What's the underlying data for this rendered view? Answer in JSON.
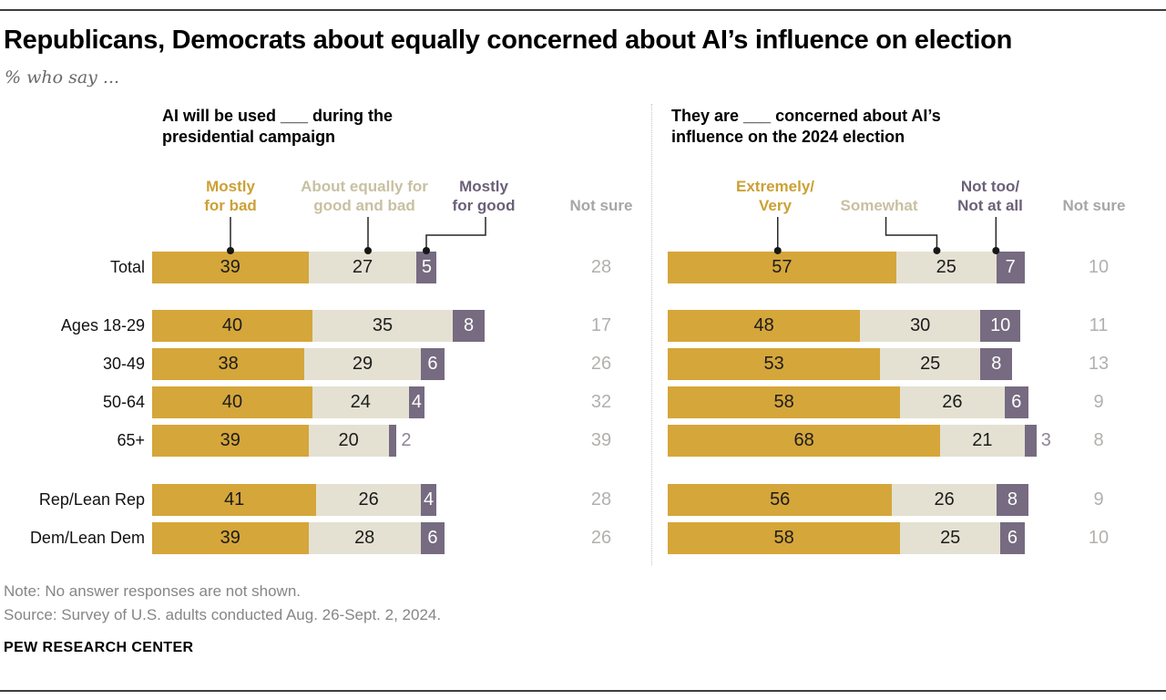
{
  "meta": {
    "title": "Republicans, Democrats about equally concerned about AI’s influence on election",
    "subtitle": "% who say ...",
    "note": "Note: No answer responses are not shown.",
    "source": "Source: Survey of U.S. adults conducted Aug. 26-Sept. 2, 2024.",
    "brand": "PEW RESEARCH CENTER"
  },
  "colors": {
    "gold": "#d5a63a",
    "gold_text": "#cba135",
    "beige_fill": "#e4e1d3",
    "beige_text": "#c8c0a2",
    "purple": "#766b80",
    "purple_text": "#6b6078",
    "purple_light": "#8d8598",
    "notsure_text": "#b2b0ae",
    "legend_gray": "#a8a6a4"
  },
  "chart_data": [
    {
      "type": "bar",
      "stacked": true,
      "orientation": "horizontal",
      "title": "AI will be used ___ during the presidential campaign",
      "title_lines": [
        "AI will be used ___ during the",
        "presidential campaign"
      ],
      "unit": "%",
      "xlim": [
        0,
        100
      ],
      "legend_position": "top",
      "legend": [
        {
          "lines": [
            "Mostly",
            "for bad"
          ],
          "color": "#d5a63a"
        },
        {
          "lines": [
            "About equally for",
            "good and bad"
          ],
          "color": "#e4e1d3"
        },
        {
          "lines": [
            "Mostly",
            "for good"
          ],
          "color": "#766b80"
        },
        {
          "lines": [
            "Not sure"
          ],
          "color": "#a8a6a4"
        }
      ],
      "categories": [
        "Total",
        "Ages 18-29",
        "30-49",
        "50-64",
        "65+",
        "Rep/Lean Rep",
        "Dem/Lean Dem"
      ],
      "series": [
        {
          "name": "Mostly for bad",
          "values": [
            39,
            40,
            38,
            40,
            39,
            41,
            39
          ]
        },
        {
          "name": "About equally for good and bad",
          "values": [
            27,
            35,
            29,
            24,
            20,
            26,
            28
          ]
        },
        {
          "name": "Mostly for good",
          "values": [
            5,
            8,
            6,
            4,
            2,
            4,
            6
          ]
        },
        {
          "name": "Not sure",
          "values": [
            28,
            17,
            26,
            32,
            39,
            28,
            26
          ]
        }
      ]
    },
    {
      "type": "bar",
      "stacked": true,
      "orientation": "horizontal",
      "title": "They are ___ concerned about AI’s influence on the 2024 election",
      "title_lines": [
        "They are ___ concerned about AI’s",
        "influence on the 2024 election"
      ],
      "unit": "%",
      "xlim": [
        0,
        100
      ],
      "legend_position": "top",
      "legend": [
        {
          "lines": [
            "Extremely/",
            "Very"
          ],
          "color": "#d5a63a"
        },
        {
          "lines": [
            "Somewhat"
          ],
          "color": "#e4e1d3"
        },
        {
          "lines": [
            "Not too/",
            "Not at all"
          ],
          "color": "#766b80"
        },
        {
          "lines": [
            "Not sure"
          ],
          "color": "#a8a6a4"
        }
      ],
      "categories": [
        "Total",
        "Ages 18-29",
        "30-49",
        "50-64",
        "65+",
        "Rep/Lean Rep",
        "Dem/Lean Dem"
      ],
      "series": [
        {
          "name": "Extremely/Very",
          "values": [
            57,
            48,
            53,
            58,
            68,
            56,
            58
          ]
        },
        {
          "name": "Somewhat",
          "values": [
            25,
            30,
            25,
            26,
            21,
            26,
            25
          ]
        },
        {
          "name": "Not too/Not at all",
          "values": [
            7,
            10,
            8,
            6,
            3,
            8,
            6
          ]
        },
        {
          "name": "Not sure",
          "values": [
            10,
            11,
            13,
            9,
            8,
            9,
            10
          ]
        }
      ]
    }
  ]
}
